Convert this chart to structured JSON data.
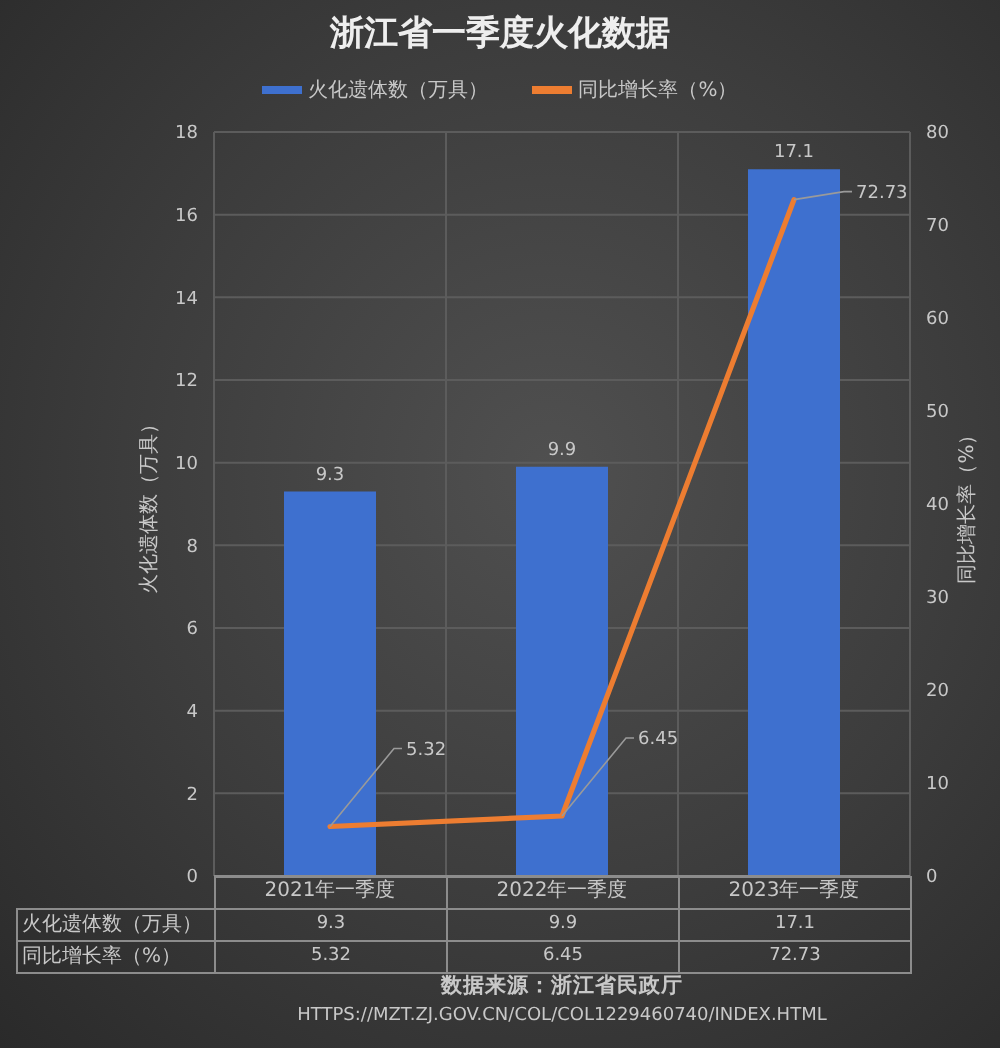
{
  "chart_data": [
    {
      "type": "bar",
      "title": "浙江省一季度火化数据",
      "categories": [
        "2021年一季度",
        "2022年一季度",
        "2023年一季度"
      ],
      "series": [
        {
          "name": "火化遗体数（万具）",
          "type": "bar",
          "color": "#3e70cf",
          "values": [
            9.3,
            9.9,
            17.1
          ],
          "value_labels": [
            "9.3",
            "9.9",
            "17.1"
          ]
        },
        {
          "name": "同比增长率（%）",
          "type": "line",
          "axis": "y2",
          "color": "#ed7d31",
          "values": [
            5.32,
            6.45,
            72.73
          ],
          "value_labels": [
            "5.32",
            "6.45",
            "72.73"
          ]
        }
      ],
      "ylabel": "火化遗体数（万具）",
      "y2label": "同比增长率（%）",
      "ylim": [
        0,
        18
      ],
      "yticks": [
        0,
        2,
        4,
        6,
        8,
        10,
        12,
        14,
        16,
        18
      ],
      "y2lim": [
        0,
        80
      ],
      "y2ticks": [
        0,
        10,
        20,
        30,
        40,
        50,
        60,
        70,
        80
      ],
      "grid": true,
      "legend": "top"
    },
    {
      "type": "heatmap",
      "categories": [
        null,
        null,
        null
      ],
      "y_categories": [
        "火化遗体数（万具）",
        "同比增长率（%）"
      ],
      "cells": [
        [
          9.3,
          9.9,
          17.1
        ],
        [
          5.32,
          6.45,
          72.73
        ]
      ],
      "data_labels": true,
      "annotations": [
        "数据来源：浙江省民政厅",
        "HTTPS://MZT.ZJ.GOV.CN/COL/COL1229460740/INDEX.HTML"
      ]
    }
  ]
}
